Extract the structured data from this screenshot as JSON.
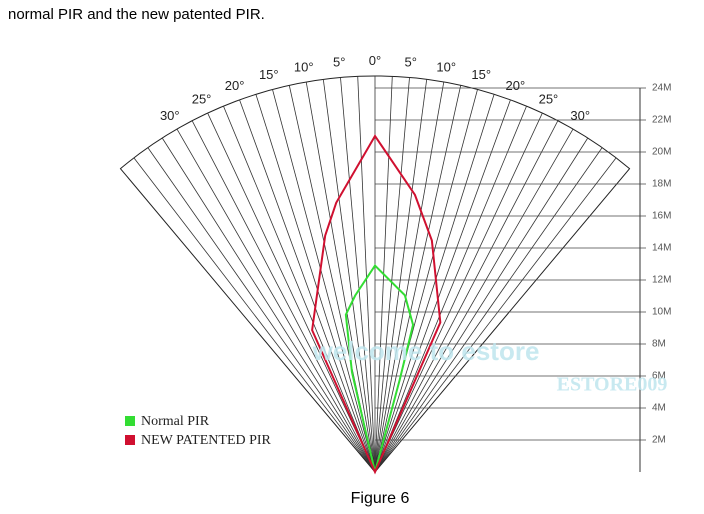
{
  "intro": "normal PIR and the new patented PIR.",
  "chart_data": {
    "type": "polar",
    "caption": "Figure 6",
    "annotations": [
      "welcome to estore",
      "ESTORE009"
    ],
    "ylim": [
      0,
      24
    ],
    "yticks": [
      {
        "value": 2,
        "label": "2M"
      },
      {
        "value": 4,
        "label": "4M"
      },
      {
        "value": 6,
        "label": "6M"
      },
      {
        "value": 8,
        "label": "8M"
      },
      {
        "value": 10,
        "label": "10M"
      },
      {
        "value": 12,
        "label": "12M"
      },
      {
        "value": 14,
        "label": "14M"
      },
      {
        "value": 16,
        "label": "16M"
      },
      {
        "value": 18,
        "label": "18M"
      },
      {
        "value": 20,
        "label": "20M"
      },
      {
        "value": 22,
        "label": "22M"
      },
      {
        "value": 24,
        "label": "24M"
      }
    ],
    "angle_lim": [
      -40,
      40
    ],
    "angle_ticks": [
      {
        "value": -30,
        "label": "30°"
      },
      {
        "value": -25,
        "label": "25°"
      },
      {
        "value": -20,
        "label": "20°"
      },
      {
        "value": -15,
        "label": "15°"
      },
      {
        "value": -10,
        "label": "10°"
      },
      {
        "value": -5,
        "label": "5°"
      },
      {
        "value": 0,
        "label": "0°"
      },
      {
        "value": 5,
        "label": "5°"
      },
      {
        "value": 10,
        "label": "10°"
      },
      {
        "value": 15,
        "label": "15°"
      },
      {
        "value": 20,
        "label": "20°"
      },
      {
        "value": 25,
        "label": "25°"
      },
      {
        "value": 30,
        "label": "30°"
      }
    ],
    "series": [
      {
        "name": "Normal PIR",
        "color": "#33dd33",
        "x": [
          -13,
          -10.5,
          -6.4,
          0,
          9.6,
          14.5,
          15
        ],
        "values": [
          6.4,
          10,
          11.1,
          12.9,
          11.2,
          9.5,
          6
        ]
      },
      {
        "name": "NEW PATENTED PIR",
        "color": "#d01030",
        "x": [
          -23.9,
          -11.9,
          -8.2,
          0,
          8.2,
          13.8,
          23.6
        ],
        "values": [
          9.7,
          15.1,
          17,
          21,
          17.5,
          14.9,
          10.2
        ]
      }
    ]
  }
}
